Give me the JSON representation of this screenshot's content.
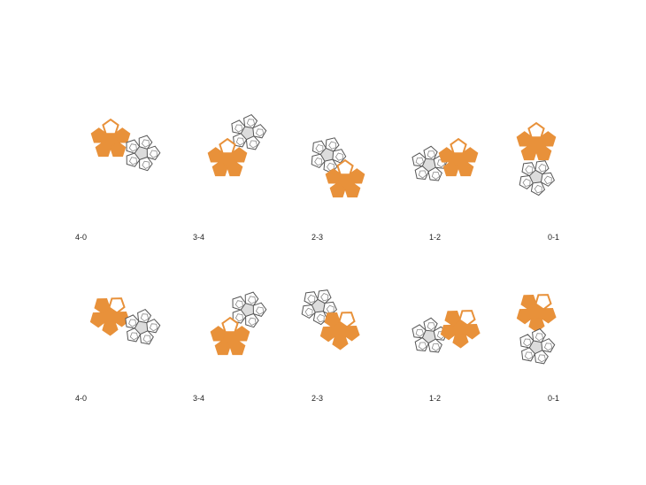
{
  "colors": {
    "orange": "#E8913A",
    "grey_fill": "#dcdcdc",
    "grey_stroke": "#555555"
  },
  "rows": [
    {
      "panels": [
        {
          "label": "4-0"
        },
        {
          "label": "3-4"
        },
        {
          "label": "2-3"
        },
        {
          "label": "1-2"
        },
        {
          "label": "0-1"
        }
      ]
    },
    {
      "panels": [
        {
          "label": "4-0"
        },
        {
          "label": "3-4"
        },
        {
          "label": "2-3"
        },
        {
          "label": "1-2"
        },
        {
          "label": "0-1"
        }
      ]
    }
  ]
}
